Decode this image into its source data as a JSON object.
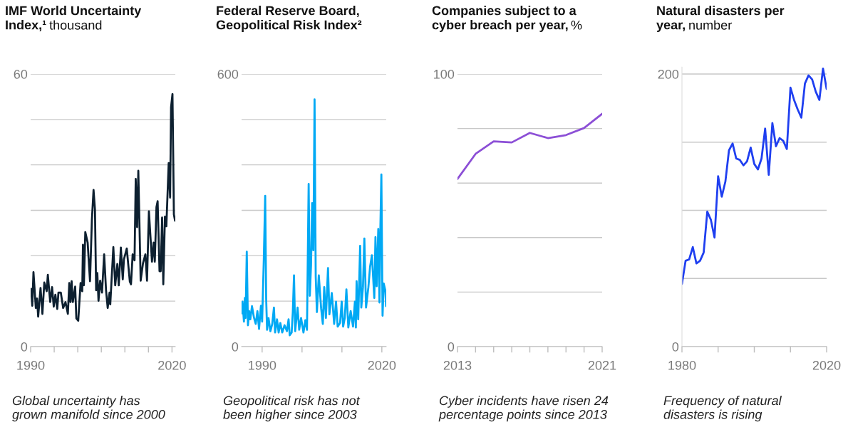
{
  "chart_data": [
    {
      "type": "line",
      "title": "IMF World Uncertainty\nIndex,¹",
      "subtitle": "thousand",
      "color": "#0d2030",
      "x": [
        1990.1,
        1990.35,
        1990.6,
        1991.1,
        1991.35,
        1991.6,
        1992.1,
        1992.5,
        1992.9,
        1993.4,
        1993.65,
        1994.15,
        1994.55,
        1994.9,
        1995.25,
        1995.65,
        1995.9,
        1996.4,
        1996.9,
        1997.4,
        1997.9,
        1998.2,
        1998.45,
        1998.7,
        1998.95,
        1999.45,
        1999.7,
        2000.1,
        2000.6,
        2000.95,
        2001.1,
        2001.3,
        2001.6,
        2002.1,
        2002.6,
        2003.0,
        2003.35,
        2003.65,
        2003.9,
        2004.15,
        2004.4,
        2004.75,
        2005.15,
        2005.6,
        2006.0,
        2006.35,
        2006.75,
        2006.9,
        2007.55,
        2007.95,
        2008.4,
        2008.7,
        2009.15,
        2009.55,
        2009.8,
        2010.4,
        2011.05,
        2011.3,
        2011.65,
        2012.05,
        2012.3,
        2012.6,
        2012.85,
        2013.35,
        2013.85,
        2014.35,
        2014.7,
        2015.1,
        2015.75,
        2016.1,
        2016.35,
        2016.7,
        2016.95,
        2017.35,
        2017.6,
        2017.9,
        2018.15,
        2018.5,
        2018.8,
        2019.3,
        2019.6,
        2019.8,
        2020.1,
        2020.4,
        2020.65
      ],
      "values": [
        12.7,
        9.0,
        16.4,
        8.5,
        10.6,
        6.6,
        12.9,
        7.2,
        14.1,
        12.2,
        15.8,
        9.8,
        13.1,
        8.8,
        11.4,
        8.3,
        11.9,
        11.9,
        8.5,
        9.8,
        7.2,
        14.0,
        9.8,
        14.4,
        9.8,
        13.2,
        6.2,
        5.7,
        14.0,
        12.2,
        22.4,
        13.5,
        25.2,
        22.9,
        14.4,
        27.9,
        34.5,
        30.2,
        12.4,
        16.2,
        10.1,
        14.5,
        11.9,
        20.3,
        12.4,
        8.5,
        11.9,
        9.3,
        21.9,
        13.5,
        18.2,
        13.5,
        21.8,
        14.8,
        19.2,
        21.6,
        14.3,
        13.7,
        20.3,
        19.0,
        36.9,
        26.3,
        38.7,
        14.5,
        18.4,
        20.3,
        14.5,
        29.8,
        18.7,
        22.9,
        18.7,
        30.7,
        32.0,
        16.6,
        16.6,
        28.4,
        13.7,
        28.6,
        26.5,
        40.4,
        32.8,
        52.7,
        55.6,
        29.1,
        27.7
      ],
      "xlim": [
        1990,
        2020.7
      ],
      "ylim": [
        0,
        60
      ],
      "xticks": [
        1990,
        {
          "value": 1995,
          "label": null
        },
        {
          "value": 2000,
          "label": null
        },
        {
          "value": 2005,
          "label": null
        },
        {
          "value": 2010,
          "label": null
        },
        {
          "value": 2015,
          "label": null
        },
        2020
      ],
      "yticks": [
        0,
        {
          "value": 10,
          "label": null
        },
        {
          "value": 20,
          "label": null
        },
        {
          "value": 30,
          "label": null
        },
        {
          "value": 40,
          "label": null
        },
        {
          "value": 50,
          "label": null
        },
        60
      ],
      "grid": "y",
      "annotations": [
        "Global uncertainty has\ngrown manifold since 2000"
      ]
    },
    {
      "type": "line",
      "title": "Federal Reserve Board,\nGeopolitical Risk Index²",
      "color": "#00a9f4",
      "x": [
        1984.85,
        1985.09,
        1985.44,
        1985.68,
        1985.86,
        1986.15,
        1986.45,
        1986.75,
        1987.04,
        1987.46,
        1987.93,
        1988.4,
        1988.82,
        1989.23,
        1989.7,
        1990.0,
        1990.41,
        1990.77,
        1991.01,
        1991.24,
        1991.6,
        1992.07,
        1992.54,
        1992.96,
        1993.25,
        1993.73,
        1994.14,
        1994.56,
        1995.03,
        1995.62,
        1996.21,
        1996.63,
        1996.92,
        1997.4,
        1997.69,
        1997.99,
        1998.28,
        1998.88,
        1999.29,
        1999.76,
        2000.36,
        2000.83,
        2001.24,
        2001.66,
        2001.95,
        2002.25,
        2002.54,
        2002.84,
        2003.14,
        2003.43,
        2003.73,
        2004.2,
        2004.79,
        2005.21,
        2005.56,
        2005.98,
        2006.51,
        2006.86,
        2007.46,
        2008.05,
        2008.52,
        2008.93,
        2009.53,
        2009.94,
        2010.3,
        2010.71,
        2011.12,
        2011.6,
        2012.19,
        2012.78,
        2013.25,
        2013.49,
        2013.67,
        2014.08,
        2014.56,
        2014.85,
        2015.27,
        2015.62,
        2016.04,
        2016.63,
        2017.04,
        2017.51,
        2018.11,
        2018.4,
        2018.7,
        2019.11,
        2019.41,
        2019.64,
        2019.88,
        2020.18,
        2020.47,
        2020.89,
        2021.07
      ],
      "values": [
        73,
        99,
        55,
        107,
        63,
        209,
        47,
        78,
        60,
        89,
        65,
        50,
        78,
        39,
        90,
        55,
        188,
        332,
        107,
        37,
        63,
        34,
        50,
        86,
        31,
        60,
        31,
        52,
        31,
        47,
        34,
        60,
        25,
        31,
        76,
        157,
        34,
        86,
        37,
        63,
        31,
        58,
        37,
        358,
        112,
        178,
        316,
        212,
        544,
        154,
        76,
        157,
        84,
        50,
        131,
        63,
        173,
        71,
        118,
        50,
        99,
        44,
        52,
        99,
        44,
        63,
        126,
        42,
        78,
        44,
        99,
        42,
        144,
        60,
        222,
        86,
        131,
        238,
        86,
        131,
        175,
        201,
        107,
        241,
        133,
        259,
        97,
        264,
        379,
        68,
        139,
        123,
        89
      ],
      "xlim": [
        1984.85,
        2021.1
      ],
      "ylim": [
        0,
        600
      ],
      "xticks": [
        1990,
        {
          "value": 2000,
          "label": null
        },
        {
          "value": 2010,
          "label": null
        },
        2020
      ],
      "yticks": [
        0,
        {
          "value": 100,
          "label": null
        },
        {
          "value": 200,
          "label": null
        },
        {
          "value": 300,
          "label": null
        },
        {
          "value": 400,
          "label": null
        },
        {
          "value": 500,
          "label": null
        },
        600
      ],
      "grid": "y",
      "annotations": [
        "Geopolitical risk has not\nbeen higher since 2003"
      ]
    },
    {
      "type": "line",
      "title": "Companies subject to a\ncyber breach per year,",
      "subtitle": "%",
      "color": "#8c4fd6",
      "x": [
        2013,
        2014,
        2015,
        2016,
        2017,
        2018,
        2019,
        2020,
        2021
      ],
      "values": [
        61.5,
        70.7,
        75.3,
        74.9,
        78.4,
        76.5,
        77.6,
        80.2,
        85.4
      ],
      "xlim": [
        2013,
        2021
      ],
      "ylim": [
        0,
        100
      ],
      "xticks": [
        2013,
        {
          "value": 2014,
          "label": null
        },
        {
          "value": 2015,
          "label": null
        },
        {
          "value": 2016,
          "label": null
        },
        {
          "value": 2017,
          "label": null
        },
        {
          "value": 2018,
          "label": null
        },
        {
          "value": 2019,
          "label": null
        },
        {
          "value": 2020,
          "label": null
        },
        2021
      ],
      "yticks": [
        0,
        {
          "value": 20,
          "label": null
        },
        {
          "value": 40,
          "label": null
        },
        {
          "value": 60,
          "label": null
        },
        {
          "value": 80,
          "label": null
        },
        100
      ],
      "grid": "y",
      "annotations": [
        "Cyber incidents have risen 24\npercentage points since 2013"
      ]
    },
    {
      "type": "line",
      "title": "Natural disasters per\nyear,",
      "subtitle": "number",
      "color": "#1f3ff0",
      "x": [
        1980,
        1981,
        1982,
        1983,
        1984,
        1985,
        1986,
        1987,
        1988,
        1989,
        1990,
        1991,
        1992,
        1993,
        1994,
        1995,
        1996,
        1997,
        1998,
        1999,
        2000,
        2001,
        2002,
        2003,
        2004,
        2005,
        2006,
        2007,
        2008,
        2009,
        2010,
        2011,
        2012,
        2013,
        2014,
        2015,
        2016,
        2017,
        2018,
        2019,
        2020
      ],
      "values": [
        46,
        63,
        64,
        73,
        61,
        63,
        69,
        99,
        93,
        80,
        125,
        110,
        121,
        144,
        149,
        138,
        137,
        133,
        136,
        146,
        134,
        130,
        138,
        160,
        126,
        164,
        147,
        153,
        151,
        145,
        190,
        181,
        174,
        168,
        193,
        199,
        196,
        187,
        181,
        204,
        189
      ],
      "xlim": [
        1980,
        2020
      ],
      "ylim": [
        0,
        205
      ],
      "xticks": [
        1980,
        {
          "value": 1990,
          "label": null
        },
        {
          "value": 2000,
          "label": null
        },
        {
          "value": 2010,
          "label": null
        },
        2020
      ],
      "yticks": [
        0,
        {
          "value": 50,
          "label": null
        },
        {
          "value": 100,
          "label": null
        },
        {
          "value": 150,
          "label": null
        },
        200
      ],
      "grid": "y",
      "annotations": [
        "Frequency of natural\ndisasters is rising"
      ]
    }
  ]
}
